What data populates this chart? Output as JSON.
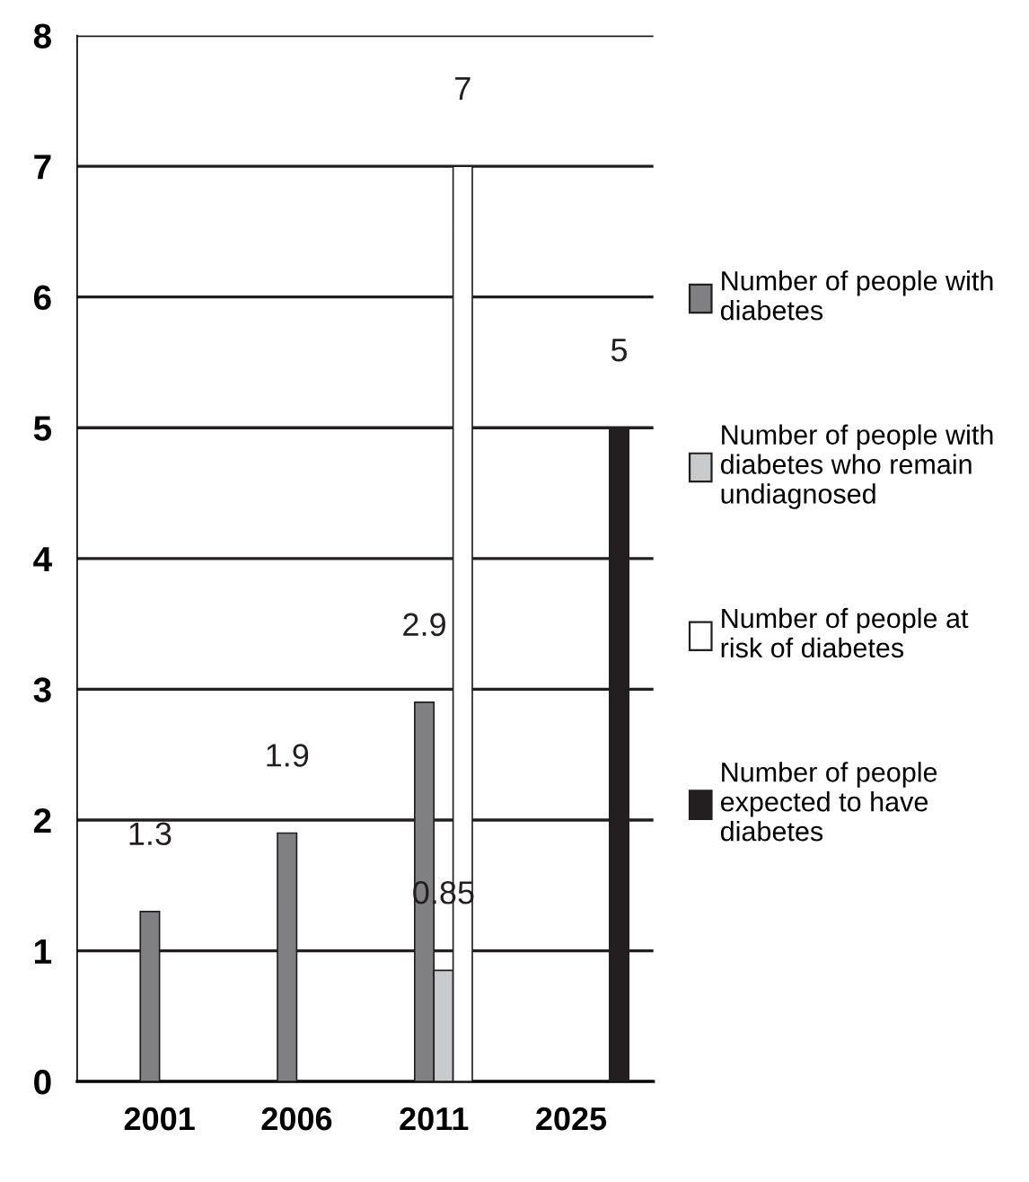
{
  "chart_data": {
    "type": "bar",
    "categories": [
      "2001",
      "2006",
      "2011",
      "2025"
    ],
    "series": [
      {
        "name": "Number of people with diabetes",
        "color": "#808083",
        "values": [
          1.3,
          1.9,
          2.9,
          null
        ],
        "value_labels": [
          "1.3",
          "1.9",
          "2.9",
          null
        ]
      },
      {
        "name": "Number of people with diabetes who remain undiagnosed",
        "color": "#c9cacc",
        "values": [
          null,
          null,
          0.85,
          null
        ],
        "value_labels": [
          null,
          null,
          "0.85",
          null
        ]
      },
      {
        "name": "Number of people at risk of diabetes",
        "color": "#ffffff",
        "values": [
          null,
          null,
          7,
          null
        ],
        "value_labels": [
          null,
          null,
          "7",
          null
        ]
      },
      {
        "name": "Number of people expected to have diabetes",
        "color": "#231f20",
        "values": [
          null,
          null,
          null,
          5
        ],
        "value_labels": [
          null,
          null,
          null,
          "5"
        ]
      }
    ],
    "ylim": [
      0,
      8
    ],
    "yticks": [
      0,
      1,
      2,
      3,
      4,
      5,
      6,
      7,
      8
    ],
    "grid": "y",
    "legend": "right"
  }
}
